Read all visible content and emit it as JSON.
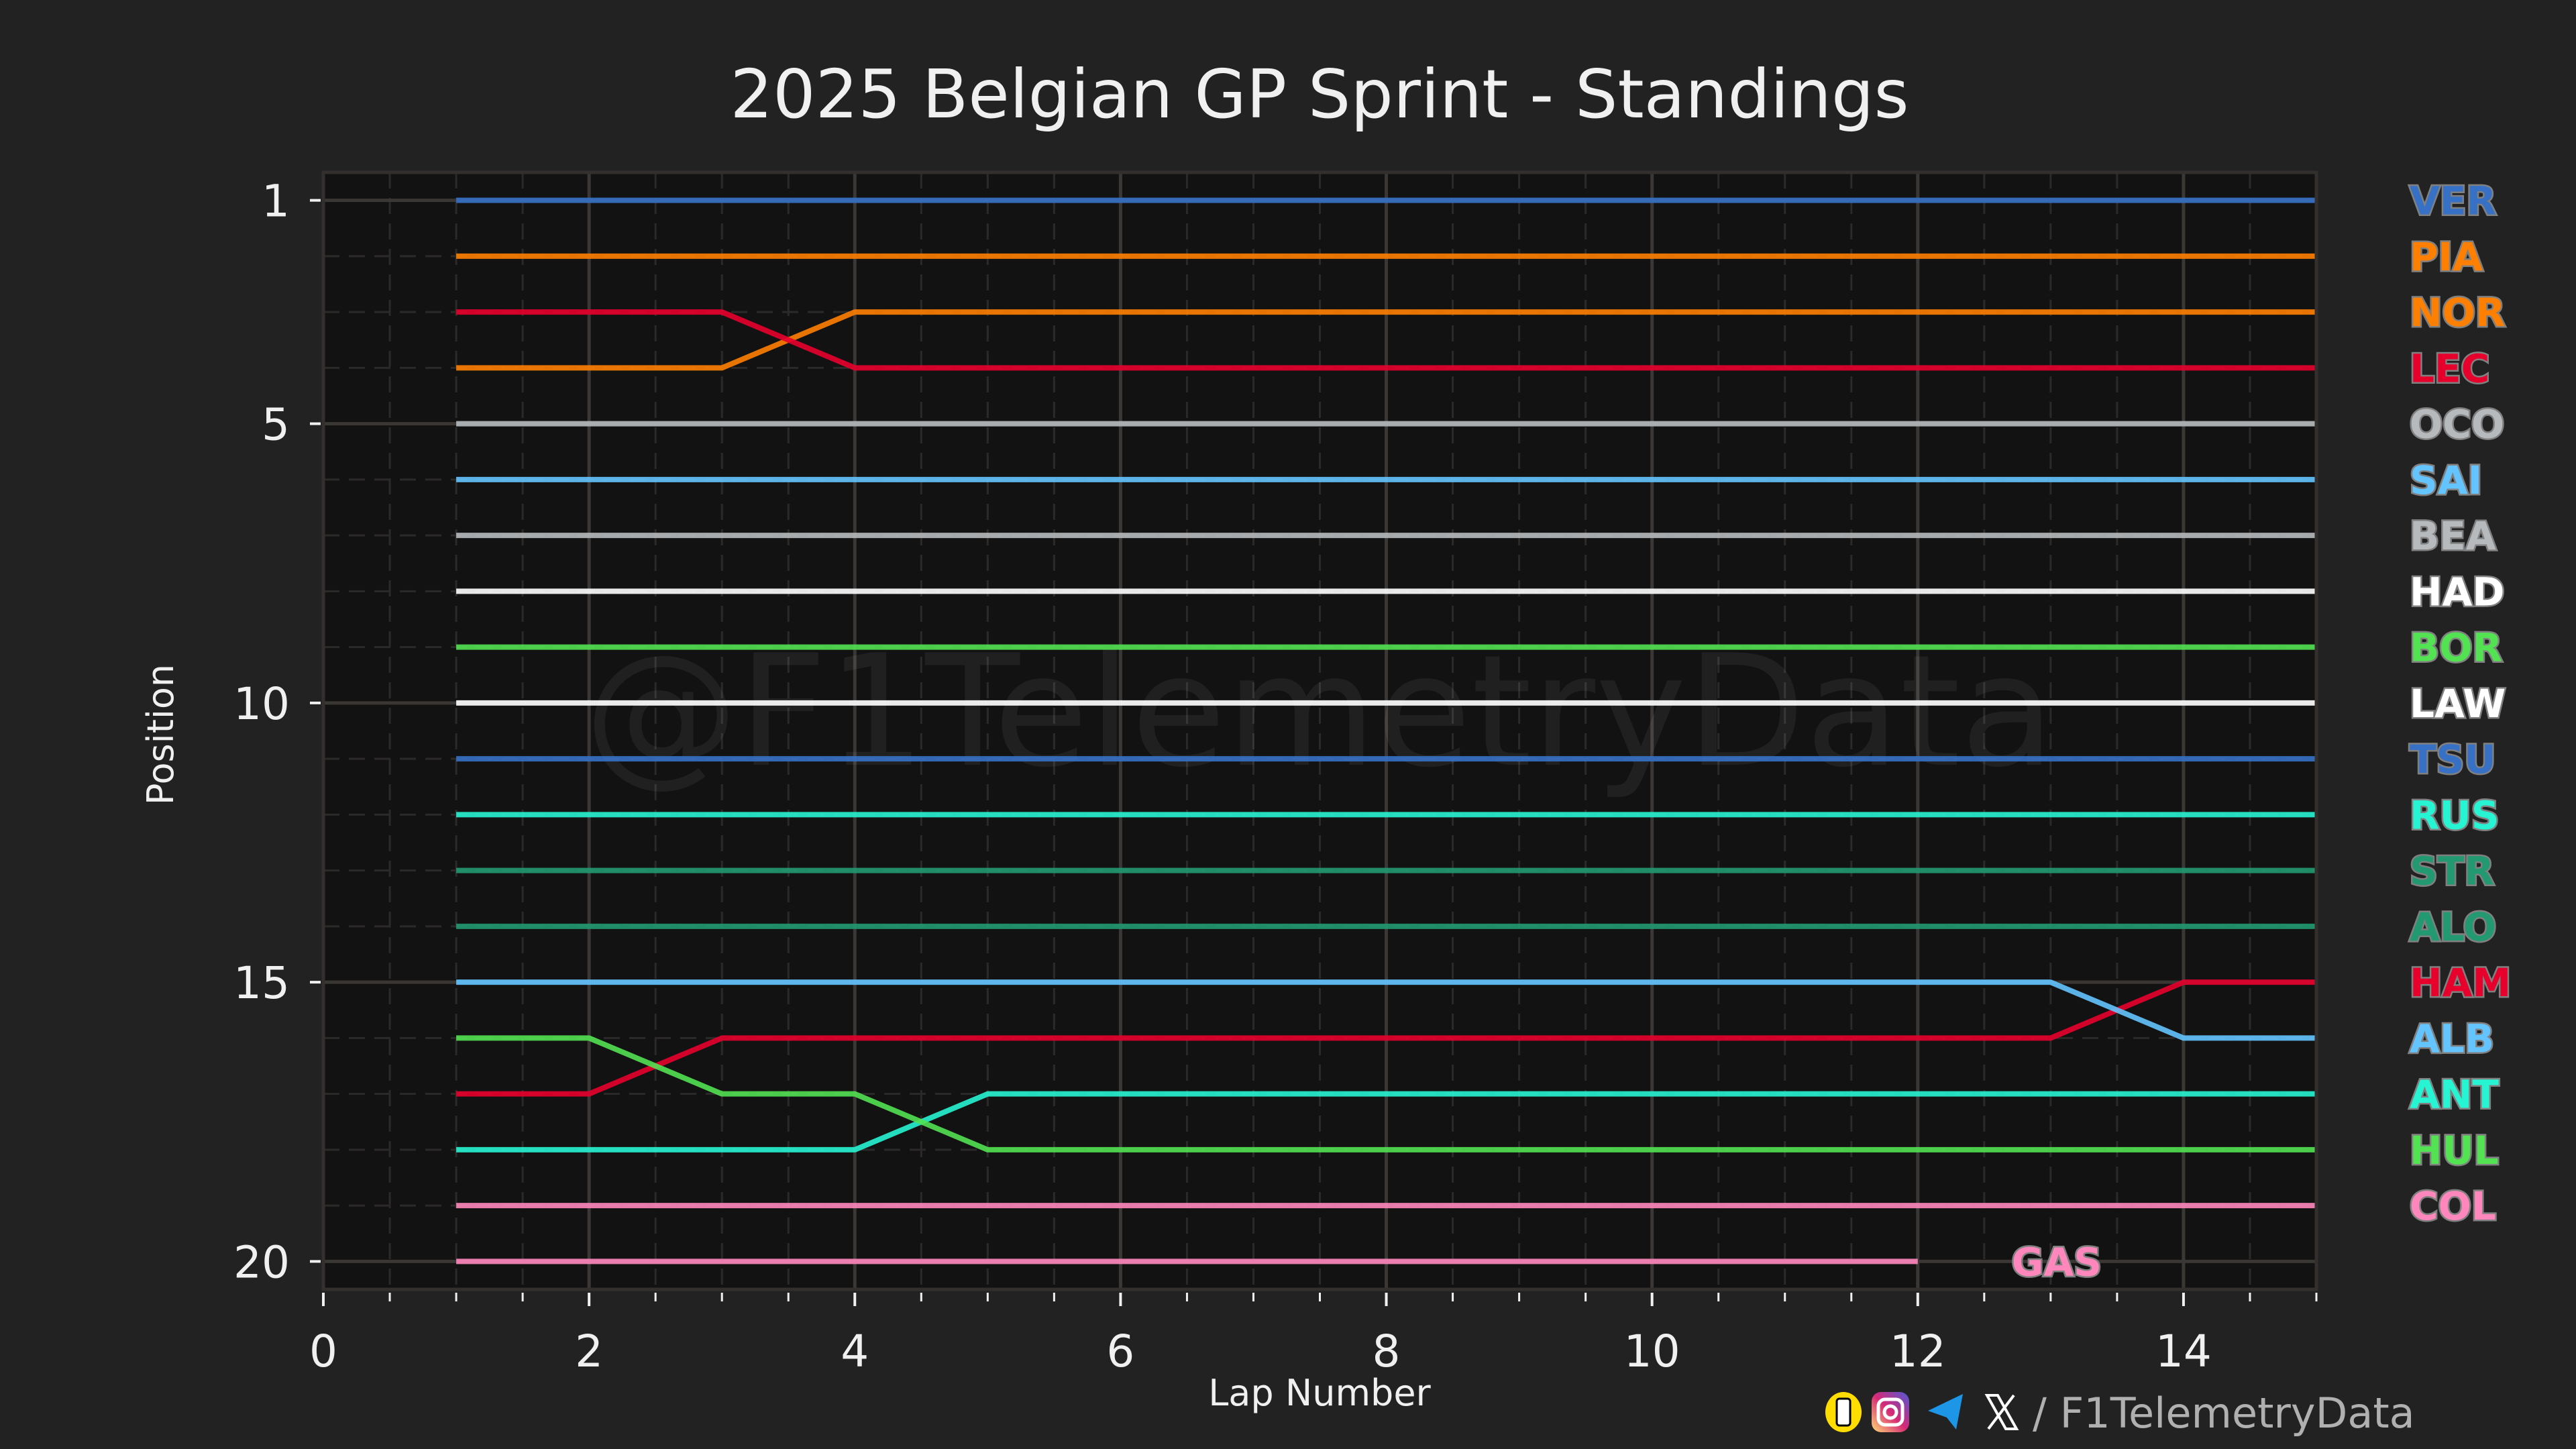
{
  "chart_data": {
    "type": "line",
    "title": "2025 Belgian GP Sprint - Standings",
    "xlabel": "Lap Number",
    "ylabel": "Position",
    "xlim": [
      0,
      15
    ],
    "ylim": [
      20.5,
      0.5
    ],
    "xticks": [
      "0",
      "2",
      "4",
      "6",
      "8",
      "10",
      "12",
      "14"
    ],
    "yticks": [
      "1",
      "5",
      "10",
      "15",
      "20"
    ],
    "grid": true,
    "legend_placement": "right",
    "laps": [
      1,
      2,
      3,
      4,
      5,
      6,
      7,
      8,
      9,
      10,
      11,
      12,
      13,
      14,
      15
    ],
    "series": [
      {
        "name": "VER",
        "color": "#3671C6",
        "values": [
          1,
          1,
          1,
          1,
          1,
          1,
          1,
          1,
          1,
          1,
          1,
          1,
          1,
          1,
          1
        ]
      },
      {
        "name": "PIA",
        "color": "#FF8000",
        "values": [
          2,
          2,
          2,
          2,
          2,
          2,
          2,
          2,
          2,
          2,
          2,
          2,
          2,
          2,
          2
        ]
      },
      {
        "name": "NOR",
        "color": "#FF8000",
        "values": [
          4,
          4,
          4,
          3,
          3,
          3,
          3,
          3,
          3,
          3,
          3,
          3,
          3,
          3,
          3
        ]
      },
      {
        "name": "LEC",
        "color": "#E8002D",
        "values": [
          3,
          3,
          3,
          4,
          4,
          4,
          4,
          4,
          4,
          4,
          4,
          4,
          4,
          4,
          4
        ]
      },
      {
        "name": "OCO",
        "color": "#B6BABD",
        "values": [
          5,
          5,
          5,
          5,
          5,
          5,
          5,
          5,
          5,
          5,
          5,
          5,
          5,
          5,
          5
        ]
      },
      {
        "name": "SAI",
        "color": "#64C4FF",
        "values": [
          6,
          6,
          6,
          6,
          6,
          6,
          6,
          6,
          6,
          6,
          6,
          6,
          6,
          6,
          6
        ]
      },
      {
        "name": "BEA",
        "color": "#B6BABD",
        "values": [
          7,
          7,
          7,
          7,
          7,
          7,
          7,
          7,
          7,
          7,
          7,
          7,
          7,
          7,
          7
        ]
      },
      {
        "name": "HAD",
        "color": "#FFFFFF",
        "values": [
          8,
          8,
          8,
          8,
          8,
          8,
          8,
          8,
          8,
          8,
          8,
          8,
          8,
          8,
          8
        ]
      },
      {
        "name": "BOR",
        "color": "#52E252",
        "values": [
          9,
          9,
          9,
          9,
          9,
          9,
          9,
          9,
          9,
          9,
          9,
          9,
          9,
          9,
          9
        ]
      },
      {
        "name": "LAW",
        "color": "#FFFFFF",
        "values": [
          10,
          10,
          10,
          10,
          10,
          10,
          10,
          10,
          10,
          10,
          10,
          10,
          10,
          10,
          10
        ]
      },
      {
        "name": "TSU",
        "color": "#3671C6",
        "values": [
          11,
          11,
          11,
          11,
          11,
          11,
          11,
          11,
          11,
          11,
          11,
          11,
          11,
          11,
          11
        ]
      },
      {
        "name": "RUS",
        "color": "#27F4D2",
        "values": [
          12,
          12,
          12,
          12,
          12,
          12,
          12,
          12,
          12,
          12,
          12,
          12,
          12,
          12,
          12
        ]
      },
      {
        "name": "STR",
        "color": "#229971",
        "values": [
          13,
          13,
          13,
          13,
          13,
          13,
          13,
          13,
          13,
          13,
          13,
          13,
          13,
          13,
          13
        ]
      },
      {
        "name": "ALO",
        "color": "#229971",
        "values": [
          14,
          14,
          14,
          14,
          14,
          14,
          14,
          14,
          14,
          14,
          14,
          14,
          14,
          14,
          14
        ]
      },
      {
        "name": "HAM",
        "color": "#E8002D",
        "values": [
          17,
          17,
          16,
          16,
          16,
          16,
          16,
          16,
          16,
          16,
          16,
          16,
          16,
          15,
          15
        ]
      },
      {
        "name": "ALB",
        "color": "#64C4FF",
        "values": [
          15,
          15,
          15,
          15,
          15,
          15,
          15,
          15,
          15,
          15,
          15,
          15,
          15,
          16,
          16
        ]
      },
      {
        "name": "ANT",
        "color": "#27F4D2",
        "values": [
          18,
          18,
          18,
          18,
          17,
          17,
          17,
          17,
          17,
          17,
          17,
          17,
          17,
          17,
          17
        ]
      },
      {
        "name": "HUL",
        "color": "#52E252",
        "values": [
          16,
          16,
          17,
          17,
          18,
          18,
          18,
          18,
          18,
          18,
          18,
          18,
          18,
          18,
          18
        ]
      },
      {
        "name": "COL",
        "color": "#FF87BC",
        "values": [
          19,
          19,
          19,
          19,
          19,
          19,
          19,
          19,
          19,
          19,
          19,
          19,
          19,
          19,
          19
        ]
      },
      {
        "name": "GAS",
        "color": "#FF87BC",
        "values": [
          20,
          20,
          20,
          20,
          20,
          20,
          20,
          20,
          20,
          20,
          20,
          20,
          null,
          null,
          null
        ]
      }
    ]
  },
  "watermark": "@F1TelemetryData",
  "footer": {
    "handle": "/ F1TelemetryData",
    "icons": [
      "kofi-icon",
      "instagram-icon",
      "telegram-icon",
      "x-icon"
    ]
  },
  "colors": {
    "background": "#222222",
    "plot_background": "#121212"
  }
}
